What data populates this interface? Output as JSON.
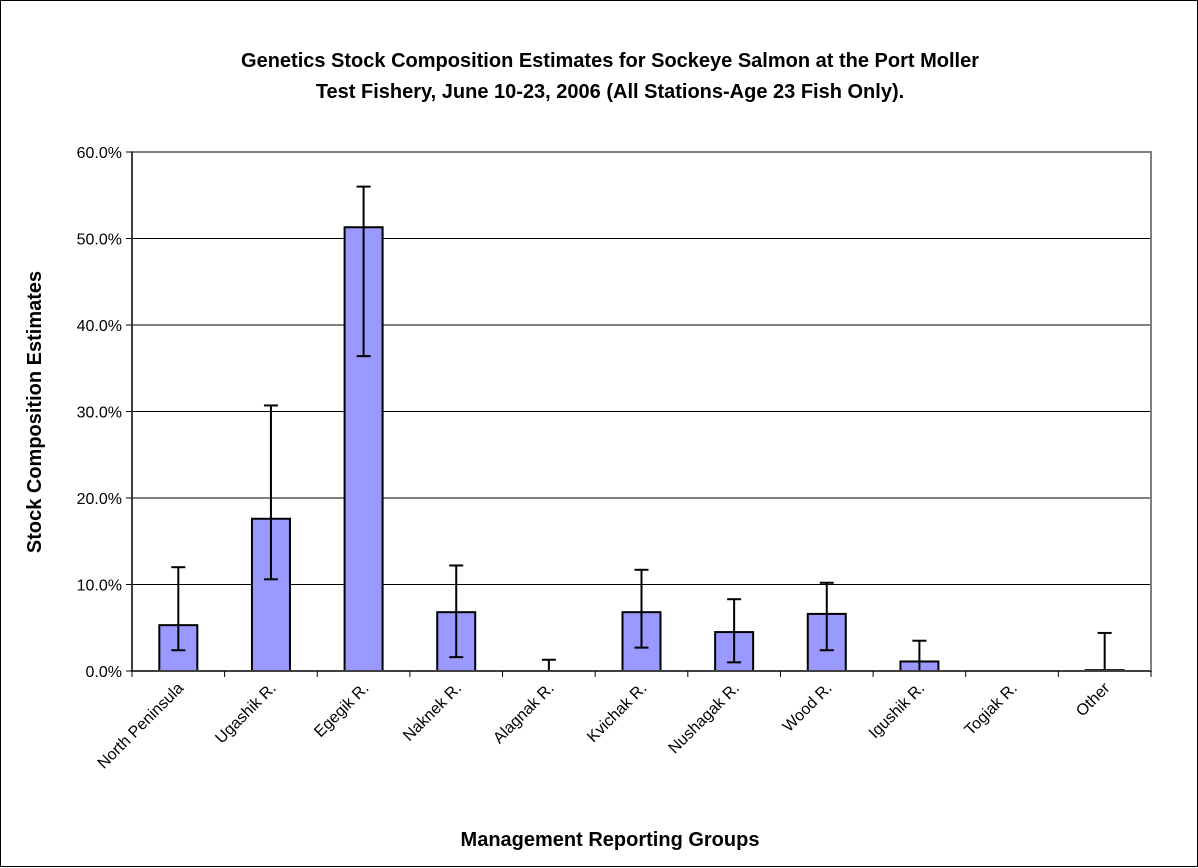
{
  "chart_data": {
    "type": "bar",
    "title": [
      "Genetics Stock Composition Estimates for Sockeye Salmon at the Port Moller",
      "Test Fishery, June 10-23, 2006 (All Stations-Age 23 Fish Only)."
    ],
    "xlabel": "Management Reporting Groups",
    "ylabel": "Stock Composition Estimates",
    "categories": [
      "North Peninsula",
      "Ugashik R.",
      "Egegik R.",
      "Naknek R.",
      "Alagnak R.",
      "Kvichak R.",
      "Nushagak R.",
      "Wood R.",
      "Igushik R.",
      "Togiak R.",
      "Other"
    ],
    "values": [
      5.3,
      17.6,
      51.3,
      6.8,
      0.0,
      6.8,
      4.5,
      6.6,
      1.1,
      0.0,
      0.1
    ],
    "error_low": [
      2.4,
      10.6,
      36.4,
      1.6,
      0.0,
      2.7,
      1.0,
      2.4,
      0.0,
      0.0,
      0.0
    ],
    "error_high": [
      12.0,
      30.7,
      56.0,
      12.2,
      1.3,
      11.7,
      8.3,
      10.2,
      3.5,
      0.0,
      4.4
    ],
    "ylim": [
      0,
      60
    ],
    "yticks": [
      0,
      10,
      20,
      30,
      40,
      50,
      60
    ],
    "ytick_labels": [
      "0.0%",
      "10.0%",
      "20.0%",
      "30.0%",
      "40.0%",
      "50.0%",
      "60.0%"
    ],
    "grid": true,
    "legend": "none",
    "bar_color": "#9999ff",
    "bar_edge_color": "#000000",
    "gridline_color": "#000000",
    "plot_border_color": "#808080"
  }
}
